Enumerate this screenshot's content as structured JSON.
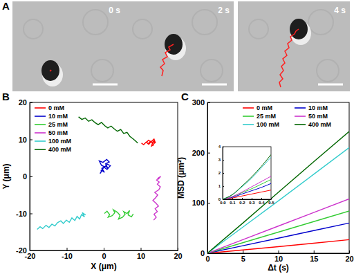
{
  "panel_a": {
    "label": "A",
    "frames": [
      "0 s",
      "2 s",
      "4 s"
    ]
  },
  "chart_data": [
    {
      "type": "line",
      "annotations": [
        "B"
      ],
      "x_label": "X (μm)",
      "y_label": "Y (μm)",
      "xlim": [
        -20,
        20
      ],
      "ylim": [
        -20,
        20
      ],
      "xticks": [
        -20,
        -10,
        0,
        10,
        20
      ],
      "yticks": [
        -20,
        -10,
        0,
        10,
        20
      ],
      "legend": "upper left",
      "series": [
        {
          "name": "0 mM",
          "color": "#ff0000",
          "x": [
            10.2,
            10.8,
            11.5,
            12.0,
            12.6,
            13.1,
            13.5,
            12.9,
            13.4,
            14.0,
            13.6,
            12.8,
            12.2,
            11.6,
            12.1,
            12.9,
            13.8
          ],
          "values": [
            9.0,
            8.6,
            9.3,
            8.8,
            9.5,
            9.1,
            8.5,
            8.2,
            9.6,
            9.0,
            10.1,
            9.4,
            8.7,
            9.2,
            9.8,
            9.3,
            8.9
          ]
        },
        {
          "name": "10 mM",
          "color": "#0000cc",
          "x": [
            -1.0,
            -0.4,
            0.2,
            -0.5,
            0.6,
            1.2,
            0.5,
            1.5,
            0.8,
            -0.2,
            -1.2,
            -0.6,
            0.3,
            1.0,
            1.8,
            0.9,
            0.1,
            -0.8
          ],
          "values": [
            0.8,
            1.6,
            1.1,
            2.2,
            2.8,
            2.0,
            3.4,
            3.9,
            4.6,
            3.8,
            4.2,
            3.0,
            2.6,
            3.3,
            2.9,
            1.9,
            2.5,
            1.4
          ]
        },
        {
          "name": "25 mM",
          "color": "#33cc33",
          "x": [
            0.2,
            0.9,
            1.6,
            1.2,
            2.3,
            3.0,
            2.6,
            3.7,
            4.4,
            4.0,
            5.1,
            5.8,
            5.4,
            6.3,
            7.0,
            6.6,
            7.5,
            8.0
          ],
          "values": [
            -10.0,
            -9.4,
            -10.3,
            -11.0,
            -10.6,
            -9.8,
            -9.0,
            -9.7,
            -10.5,
            -11.5,
            -11.0,
            -10.2,
            -9.5,
            -10.0,
            -9.2,
            -10.4,
            -10.9,
            -10.1
          ]
        },
        {
          "name": "50 mM",
          "color": "#cc33cc",
          "x": [
            13.5,
            14.2,
            13.6,
            14.5,
            13.9,
            14.8,
            14.1,
            13.3,
            14.0,
            14.6,
            13.8,
            14.9,
            15.3,
            14.5,
            15.0,
            14.3,
            14.8,
            15.4,
            14.7
          ],
          "values": [
            -11.8,
            -11.0,
            -10.2,
            -9.5,
            -8.7,
            -8.0,
            -7.2,
            -6.5,
            -5.8,
            -5.0,
            -4.3,
            -3.6,
            -2.8,
            -2.1,
            -1.5,
            -1.0,
            -0.4,
            0.0,
            -0.8
          ]
        },
        {
          "name": "100 mM",
          "color": "#33cccc",
          "x": [
            -18.0,
            -17.2,
            -16.5,
            -15.6,
            -14.8,
            -14.0,
            -13.2,
            -12.5,
            -11.6,
            -10.9,
            -10.1,
            -9.3,
            -8.6,
            -7.8,
            -7.2,
            -6.5,
            -6.0,
            -5.2,
            -5.8,
            -4.9
          ],
          "values": [
            -14.3,
            -13.6,
            -14.1,
            -13.2,
            -13.8,
            -12.9,
            -13.4,
            -12.5,
            -12.0,
            -12.7,
            -11.8,
            -12.4,
            -11.2,
            -11.9,
            -10.8,
            -11.5,
            -10.3,
            -10.9,
            -9.8,
            -10.4
          ]
        },
        {
          "name": "400 mM",
          "color": "#006600",
          "x": [
            -6.8,
            -5.9,
            -5.0,
            -4.1,
            -3.2,
            -2.3,
            -1.5,
            -0.6,
            0.3,
            1.1,
            2.0,
            2.9,
            3.7,
            4.6,
            5.4,
            6.3,
            7.1,
            7.9,
            8.6,
            9.2
          ],
          "values": [
            16.1,
            15.4,
            15.8,
            14.9,
            15.3,
            14.5,
            14.0,
            14.6,
            13.7,
            13.1,
            13.6,
            12.8,
            12.2,
            12.7,
            11.6,
            11.9,
            10.8,
            10.2,
            9.6,
            9.0
          ]
        }
      ]
    },
    {
      "type": "line",
      "annotations": [
        "C"
      ],
      "x_label": "Δt (s)",
      "y_label": "MSD (μm²)",
      "xlim": [
        0,
        20
      ],
      "ylim": [
        0,
        300
      ],
      "xticks": [
        0,
        5,
        10,
        15,
        20
      ],
      "yticks": [
        0,
        100,
        200,
        300
      ],
      "legend": "upper right",
      "x": [
        0,
        5,
        10,
        15,
        20
      ],
      "series": [
        {
          "name": "0 mM",
          "color": "#ff0000",
          "values": [
            0,
            6.5,
            13,
            20,
            27
          ]
        },
        {
          "name": "10 mM",
          "color": "#0000cc",
          "values": [
            0,
            15,
            30,
            45,
            60
          ]
        },
        {
          "name": "25 mM",
          "color": "#33cc33",
          "values": [
            0,
            21,
            42,
            63,
            84
          ]
        },
        {
          "name": "50 mM",
          "color": "#cc33cc",
          "values": [
            0,
            27,
            54,
            81,
            108
          ]
        },
        {
          "name": "100 mM",
          "color": "#33cccc",
          "values": [
            0,
            52,
            104,
            157,
            210
          ]
        },
        {
          "name": "400 mM",
          "color": "#006600",
          "values": [
            0,
            60,
            121,
            182,
            242
          ]
        }
      ],
      "inset": {
        "x": [
          0,
          0.1,
          0.2,
          0.3,
          0.4,
          0.5
        ],
        "xlim": [
          0,
          0.5
        ],
        "ylim": [
          0,
          4
        ],
        "xticks": [
          {
            "value": 0,
            "label": "0.0"
          },
          0.1,
          0.2,
          0.3,
          0.4,
          0.5
        ],
        "yticks": [
          0,
          1,
          2,
          3,
          4
        ],
        "series": [
          {
            "values": [
              0,
              0.1,
              0.25,
              0.4,
              0.55,
              0.7
            ]
          },
          {
            "values": [
              0,
              0.15,
              0.4,
              0.65,
              0.9,
              1.2
            ]
          },
          {
            "values": [
              0,
              0.2,
              0.5,
              0.8,
              1.15,
              1.5
            ]
          },
          {
            "values": [
              0,
              0.2,
              0.55,
              0.95,
              1.35,
              1.75
            ]
          },
          {
            "values": [
              0,
              0.35,
              0.95,
              1.6,
              2.4,
              3.2
            ]
          },
          {
            "values": [
              0,
              0.35,
              1.0,
              1.7,
              2.5,
              3.4
            ]
          }
        ]
      }
    }
  ]
}
